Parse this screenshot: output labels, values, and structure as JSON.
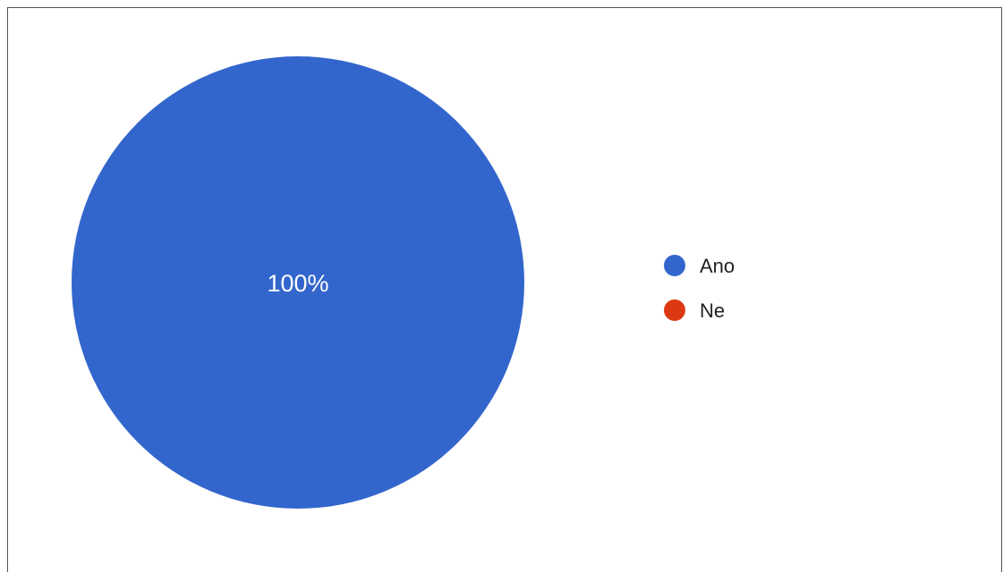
{
  "chart_data": {
    "type": "pie",
    "categories": [
      "Ano",
      "Ne"
    ],
    "values": [
      100,
      0
    ],
    "colors": [
      "#3366cc",
      "#dc3912"
    ],
    "data_labels": [
      "100%",
      ""
    ],
    "legend": {
      "position": "right",
      "entries": [
        "Ano",
        "Ne"
      ]
    }
  },
  "legend": {
    "items": [
      {
        "label": "Ano",
        "color": "#3366cc"
      },
      {
        "label": "Ne",
        "color": "#dc3912"
      }
    ]
  }
}
